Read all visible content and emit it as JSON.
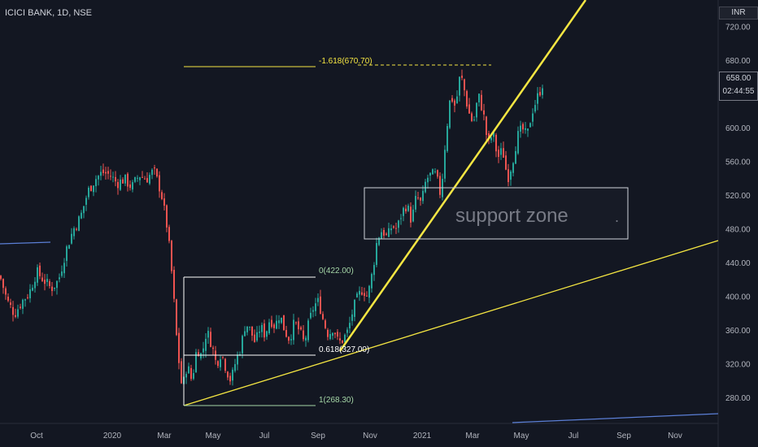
{
  "header": {
    "symbol": "ICICI BANK, 1D, NSE",
    "currency": "INR"
  },
  "current": {
    "price": "658.00",
    "countdown": "02:44:55"
  },
  "colors": {
    "background": "#131722",
    "up": "#26a69a",
    "down": "#ef5350",
    "trendline": "#f5e642",
    "fib_top": "#f5e642",
    "fib_mid": "#ffffff",
    "zone_border": "#d1d4dc",
    "blue_line": "#5b7fd6"
  },
  "annotations": {
    "fib_extension_label": "-1.618(670.70)",
    "fib_0_label": "0(422.00)",
    "fib_0618_label": "0.618(327.00)",
    "fib_1_label": "1(268.30)",
    "zone_label": "support zone",
    "zone_dot": "."
  },
  "chart_data": {
    "type": "candlestick",
    "title": "ICICI BANK, 1D, NSE",
    "x_ticks": [
      "Oct",
      "2020",
      "Mar",
      "May",
      "Jul",
      "Sep",
      "Nov",
      "2021",
      "Mar",
      "May",
      "Jul",
      "Sep",
      "Nov"
    ],
    "y_ticks": [
      "720.00",
      "680.00",
      "640.00",
      "600.00",
      "560.00",
      "520.00",
      "480.00",
      "440.00",
      "400.00",
      "360.00",
      "320.00",
      "280.00"
    ],
    "ylim": [
      250,
      738
    ],
    "fib_levels": [
      {
        "label": "-1.618",
        "value": 670.7
      },
      {
        "label": "0",
        "value": 422.0
      },
      {
        "label": "0.618",
        "value": 327.0
      },
      {
        "label": "1",
        "value": 268.3
      }
    ],
    "support_zone": {
      "low": 465,
      "high": 527
    },
    "series": [
      {
        "values": [
          [
            0,
            425
          ],
          [
            9,
            395
          ],
          [
            18,
            380
          ],
          [
            27,
            395
          ],
          [
            36,
            405
          ],
          [
            45,
            430
          ],
          [
            54,
            420
          ],
          [
            63,
            410
          ],
          [
            72,
            420
          ],
          [
            81,
            455
          ],
          [
            90,
            480
          ],
          [
            99,
            495
          ],
          [
            108,
            525
          ],
          [
            117,
            540
          ],
          [
            126,
            548
          ],
          [
            135,
            545
          ],
          [
            144,
            535
          ],
          [
            153,
            540
          ],
          [
            162,
            530
          ],
          [
            171,
            545
          ],
          [
            180,
            540
          ],
          [
            189,
            550
          ],
          [
            198,
            525
          ],
          [
            206,
            480
          ],
          [
            212,
            420
          ],
          [
            218,
            340
          ],
          [
            224,
            290
          ],
          [
            230,
            320
          ],
          [
            236,
            300
          ],
          [
            242,
            340
          ],
          [
            248,
            330
          ],
          [
            254,
            360
          ],
          [
            260,
            345
          ],
          [
            266,
            320
          ],
          [
            272,
            335
          ],
          [
            278,
            315
          ],
          [
            284,
            300
          ],
          [
            290,
            325
          ],
          [
            296,
            340
          ],
          [
            302,
            370
          ],
          [
            308,
            360
          ],
          [
            314,
            345
          ],
          [
            320,
            365
          ],
          [
            326,
            355
          ],
          [
            332,
            375
          ],
          [
            338,
            365
          ],
          [
            344,
            380
          ],
          [
            350,
            360
          ],
          [
            356,
            350
          ],
          [
            362,
            370
          ],
          [
            368,
            360
          ],
          [
            374,
            345
          ],
          [
            380,
            370
          ],
          [
            386,
            390
          ],
          [
            392,
            395
          ],
          [
            398,
            370
          ],
          [
            404,
            355
          ],
          [
            410,
            365
          ],
          [
            416,
            345
          ],
          [
            422,
            350
          ],
          [
            428,
            360
          ],
          [
            434,
            385
          ],
          [
            440,
            400
          ],
          [
            446,
            410
          ],
          [
            452,
            400
          ],
          [
            458,
            430
          ],
          [
            464,
            470
          ],
          [
            470,
            480
          ],
          [
            476,
            470
          ],
          [
            482,
            485
          ],
          [
            488,
            480
          ],
          [
            494,
            500
          ],
          [
            500,
            510
          ],
          [
            506,
            490
          ],
          [
            512,
            520
          ],
          [
            518,
            510
          ],
          [
            524,
            540
          ],
          [
            530,
            545
          ],
          [
            536,
            545
          ],
          [
            542,
            520
          ],
          [
            548,
            590
          ],
          [
            554,
            640
          ],
          [
            560,
            625
          ],
          [
            566,
            665
          ],
          [
            570,
            650
          ],
          [
            576,
            620
          ],
          [
            582,
            605
          ],
          [
            588,
            640
          ],
          [
            594,
            620
          ],
          [
            600,
            580
          ],
          [
            606,
            595
          ],
          [
            612,
            565
          ],
          [
            618,
            575
          ],
          [
            624,
            540
          ],
          [
            630,
            560
          ],
          [
            636,
            590
          ],
          [
            642,
            600
          ],
          [
            648,
            590
          ],
          [
            654,
            620
          ],
          [
            660,
            635
          ],
          [
            666,
            650
          ],
          [
            669,
            658
          ]
        ]
      }
    ]
  }
}
